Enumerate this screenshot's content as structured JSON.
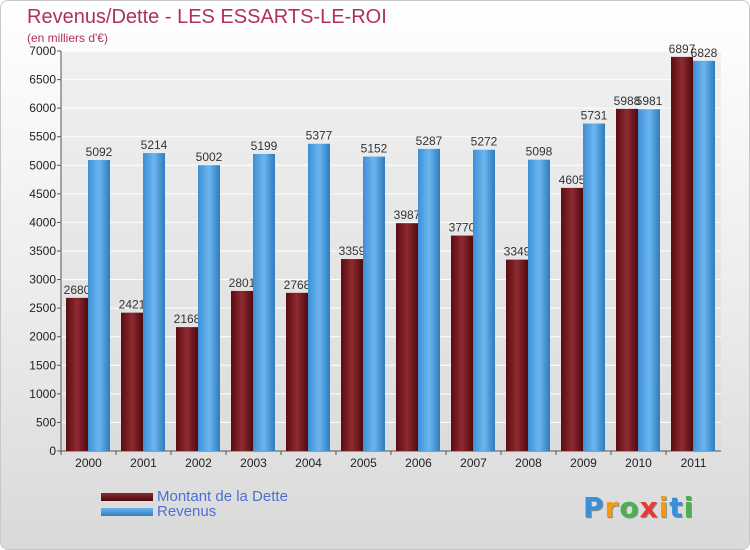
{
  "header": {
    "title": "Revenus/Dette - LES ESSARTS-LE-ROI",
    "subtitle": "(en milliers d'€)"
  },
  "colors": {
    "title": "#b0305a",
    "dette": "#7a1a1f",
    "revenus": "#4a9ee0",
    "legend_text": "#4d6fd3"
  },
  "chart_data": {
    "type": "bar",
    "categories": [
      "2000",
      "2001",
      "2002",
      "2003",
      "2004",
      "2005",
      "2006",
      "2007",
      "2008",
      "2009",
      "2010",
      "2011"
    ],
    "series": [
      {
        "name": "Montant de la Dette",
        "values": [
          2680,
          2421,
          2168,
          2801,
          2768,
          3359,
          3987,
          3770,
          3349,
          4605,
          5988,
          6897
        ]
      },
      {
        "name": "Revenus",
        "values": [
          5092,
          5214,
          5002,
          5199,
          5377,
          5152,
          5287,
          5272,
          5098,
          5731,
          5981,
          6828
        ]
      }
    ],
    "title": "Revenus/Dette - LES ESSARTS-LE-ROI",
    "ylabel": "(en milliers d'€)",
    "ylim": [
      0,
      7000
    ],
    "yticks": [
      0,
      500,
      1000,
      1500,
      2000,
      2500,
      3000,
      3500,
      4000,
      4500,
      5000,
      5500,
      6000,
      6500,
      7000
    ],
    "grid": true,
    "legend": "bottom-left"
  },
  "logo": {
    "letters": [
      "P",
      "r",
      "o",
      "x",
      "i",
      "t",
      "i"
    ],
    "colors": [
      "#3a8fd8",
      "#f39c12",
      "#4caf50",
      "#e53935",
      "#f39c12",
      "#3a8fd8",
      "#4caf50"
    ]
  }
}
